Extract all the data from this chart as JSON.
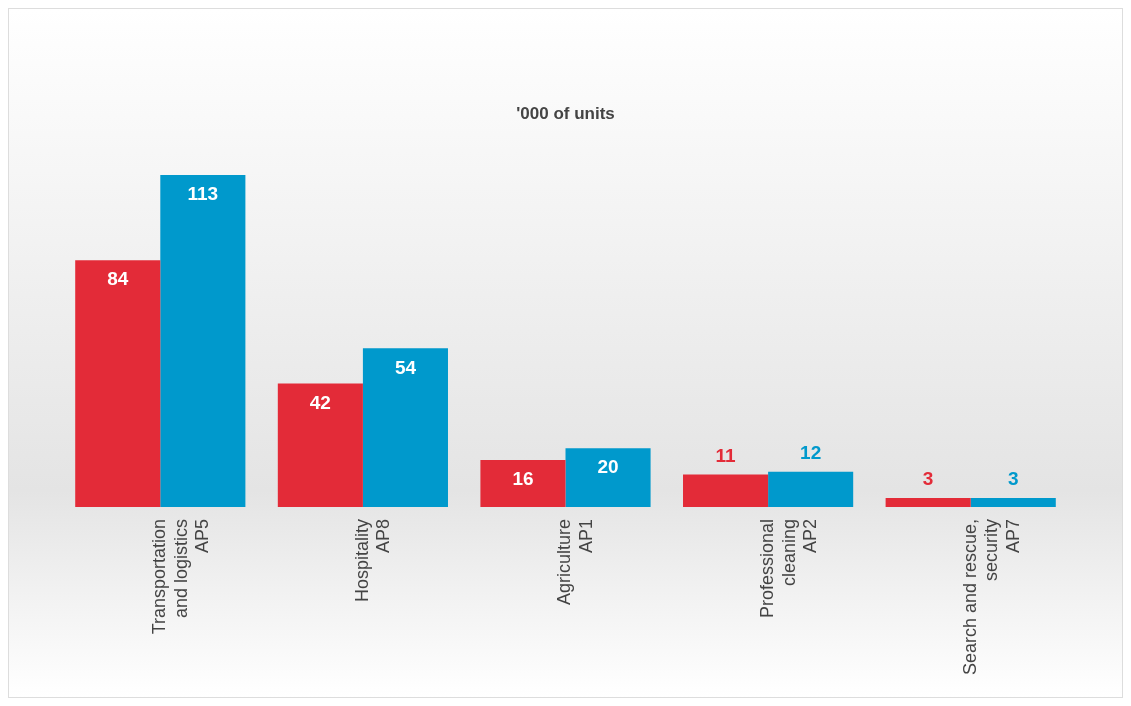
{
  "chart_data": {
    "type": "bar",
    "title": "'000 of units",
    "categories": [
      "Transportation\nand logistics\nAP5",
      "Hospitality\nAP8",
      "Agriculture\nAP1",
      "Professional\ncleaning\nAP2",
      "Search and rescue,\nsecurity\nAP7"
    ],
    "series": [
      {
        "color": "#e32b38",
        "values": [
          84,
          42,
          16,
          11,
          3
        ]
      },
      {
        "color": "#0099cc",
        "values": [
          113,
          54,
          20,
          12,
          3
        ]
      }
    ],
    "data_labels": true,
    "grid": false,
    "legend": false
  }
}
